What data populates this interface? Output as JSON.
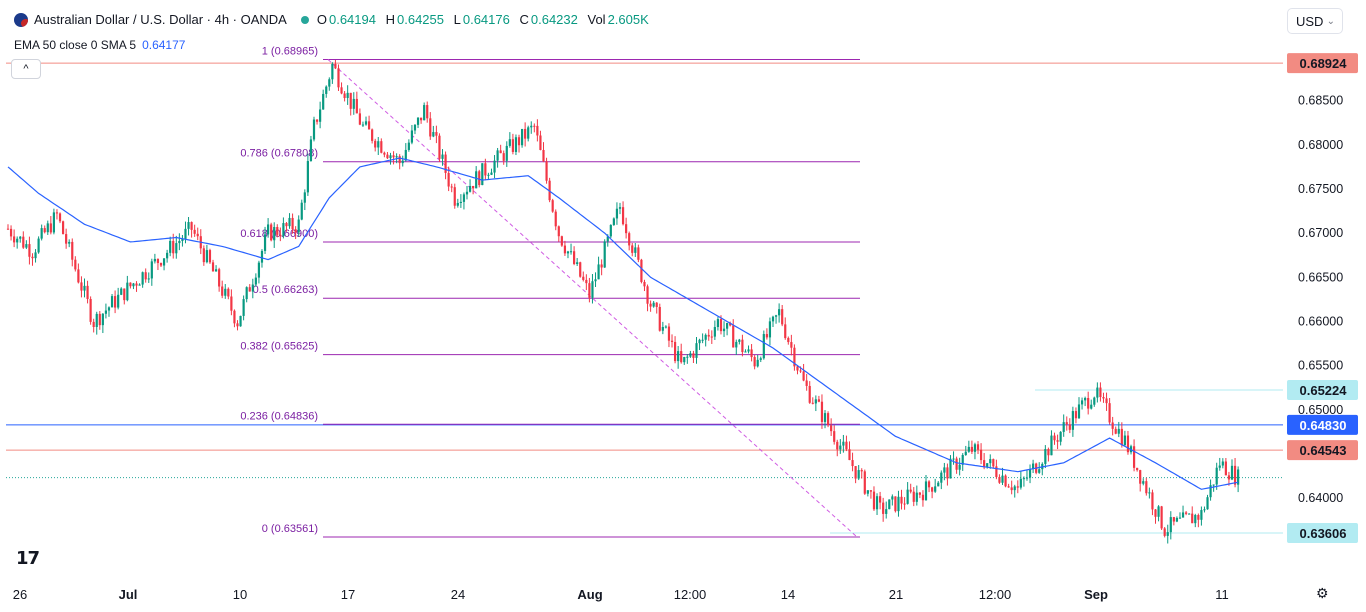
{
  "header": {
    "symbol_title": "Australian Dollar / U.S. Dollar · 4h · OANDA",
    "ohlc": [
      {
        "key": "O",
        "value": "0.64194"
      },
      {
        "key": "H",
        "value": "0.64255"
      },
      {
        "key": "L",
        "value": "0.64176"
      },
      {
        "key": "C",
        "value": "0.64232"
      },
      {
        "key": "Vol",
        "value": "2.605K"
      }
    ],
    "indicator_label": "EMA 50 close 0 SMA 5",
    "indicator_value": "0.64177",
    "collapse_glyph": "^",
    "currency": "USD",
    "currency_chevron": "⌄",
    "logo": "17",
    "settings_icon": "⚙"
  },
  "chart_data": {
    "type": "candlestick",
    "symbol": "AUDUSD",
    "interval": "4h",
    "ylim": [
      0.633,
      0.6905
    ],
    "y_ticks": [
      "0.64000",
      "0.64500",
      "0.65000",
      "0.65500",
      "0.66000",
      "0.66500",
      "0.67000",
      "0.67500",
      "0.68000",
      "0.68500"
    ],
    "x_ticks": [
      "26",
      "Jul",
      "10",
      "17",
      "24",
      "Aug",
      "12:00",
      "14",
      "21",
      "12:00",
      "Sep",
      "11"
    ],
    "bars": 330,
    "price_path": [
      [
        0,
        0.6705
      ],
      [
        8,
        0.668
      ],
      [
        16,
        0.672
      ],
      [
        28,
        0.66
      ],
      [
        40,
        0.664
      ],
      [
        60,
        0.6705
      ],
      [
        75,
        0.66
      ],
      [
        85,
        0.67
      ],
      [
        95,
        0.671
      ],
      [
        100,
        0.682
      ],
      [
        106,
        0.689
      ],
      [
        116,
        0.682
      ],
      [
        128,
        0.678
      ],
      [
        136,
        0.684
      ],
      [
        146,
        0.674
      ],
      [
        162,
        0.679
      ],
      [
        172,
        0.682
      ],
      [
        180,
        0.67
      ],
      [
        190,
        0.663
      ],
      [
        200,
        0.673
      ],
      [
        210,
        0.662
      ],
      [
        220,
        0.655
      ],
      [
        232,
        0.66
      ],
      [
        244,
        0.6555
      ],
      [
        252,
        0.661
      ],
      [
        260,
        0.653
      ],
      [
        272,
        0.646
      ],
      [
        285,
        0.6386
      ],
      [
        300,
        0.641
      ],
      [
        315,
        0.6455
      ],
      [
        330,
        0.641
      ]
    ],
    "price_path_continued": [
      [
        330,
        0.641
      ],
      [
        345,
        0.648
      ],
      [
        355,
        0.652
      ],
      [
        365,
        0.6465
      ],
      [
        378,
        0.6365
      ],
      [
        390,
        0.6382
      ],
      [
        396,
        0.644
      ],
      [
        402,
        0.6423
      ]
    ],
    "ema50_path": [
      [
        0,
        0.6775
      ],
      [
        10,
        0.6745
      ],
      [
        25,
        0.671
      ],
      [
        40,
        0.669
      ],
      [
        55,
        0.6695
      ],
      [
        70,
        0.6685
      ],
      [
        85,
        0.667
      ],
      [
        95,
        0.6685
      ],
      [
        105,
        0.674
      ],
      [
        115,
        0.6775
      ],
      [
        128,
        0.6785
      ],
      [
        140,
        0.6775
      ],
      [
        155,
        0.676
      ],
      [
        170,
        0.6765
      ],
      [
        180,
        0.674
      ],
      [
        195,
        0.67
      ],
      [
        210,
        0.665
      ],
      [
        230,
        0.661
      ],
      [
        250,
        0.657
      ],
      [
        270,
        0.652
      ],
      [
        290,
        0.647
      ],
      [
        310,
        0.644
      ],
      [
        330,
        0.643
      ],
      [
        345,
        0.644
      ],
      [
        360,
        0.6468
      ],
      [
        375,
        0.644
      ],
      [
        390,
        0.641
      ],
      [
        402,
        0.6418
      ]
    ],
    "fibonacci": {
      "levels": [
        {
          "ratio": "1",
          "price": "0.68965",
          "label": "1 (0.68965)"
        },
        {
          "ratio": "0.786",
          "price": "0.67808",
          "label": "0.786 (0.67808)"
        },
        {
          "ratio": "0.618",
          "price": "0.66900",
          "label": "0.618 (0.66900)"
        },
        {
          "ratio": "0.5",
          "price": "0.66263",
          "label": "0.5 (0.66263)"
        },
        {
          "ratio": "0.382",
          "price": "0.65625",
          "label": "0.382 (0.65625)"
        },
        {
          "ratio": "0.236",
          "price": "0.64836",
          "label": "0.236 (0.64836)"
        },
        {
          "ratio": "0",
          "price": "0.63561",
          "label": "0 (0.63561)"
        }
      ],
      "color": "#9c27b0"
    },
    "horizontal_levels": [
      {
        "label": "0.68924",
        "price": 0.68924,
        "color": "#f28b82",
        "line": "full"
      },
      {
        "label": "0.65224",
        "price": 0.65224,
        "color": "#b2ebf2",
        "line": "partial"
      },
      {
        "label": "0.64830",
        "price": 0.6483,
        "color": "#2962ff",
        "line": "full"
      },
      {
        "label": "0.64543",
        "price": 0.64543,
        "color": "#f28b82",
        "line": "full"
      },
      {
        "label": "0.63606",
        "price": 0.63606,
        "color": "#b2ebf2",
        "line": "partial"
      }
    ],
    "last_price": 0.64232,
    "up_color": "#089981",
    "down_color": "#f23645",
    "ema_color": "#2962ff"
  }
}
